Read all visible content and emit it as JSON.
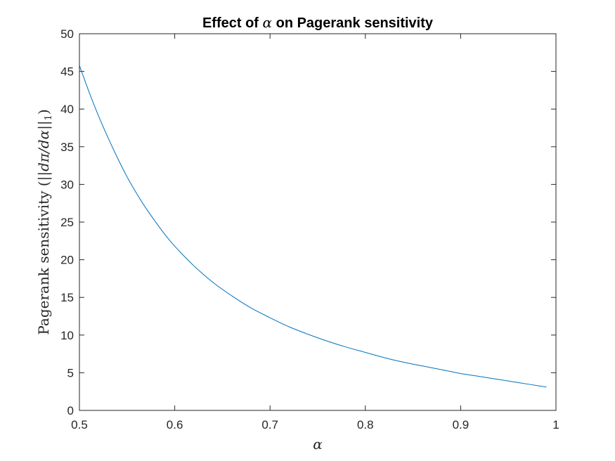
{
  "chart_data": {
    "type": "line",
    "title_prefix": "Effect of ",
    "title_symbol": "α",
    "title_suffix": " on Pagerank sensitivity",
    "xlabel": "α",
    "ylabel_text": "Pagerank sensitivity (",
    "ylabel_math": "||dπ/dα||",
    "ylabel_sub": "1",
    "ylabel_close": ")",
    "xlim": [
      0.5,
      1
    ],
    "ylim": [
      0,
      50
    ],
    "xticks": [
      "0.5",
      "0.6",
      "0.7",
      "0.8",
      "0.9",
      "1"
    ],
    "yticks": [
      "0",
      "5",
      "10",
      "15",
      "20",
      "25",
      "30",
      "35",
      "40",
      "45",
      "50"
    ],
    "grid": false,
    "line_color": "#0072BD",
    "series": [
      {
        "x": [
          0.5,
          0.51,
          0.52,
          0.53,
          0.54,
          0.55,
          0.56,
          0.57,
          0.58,
          0.59,
          0.6,
          0.62,
          0.64,
          0.66,
          0.68,
          0.7,
          0.72,
          0.74,
          0.76,
          0.78,
          0.8,
          0.82,
          0.84,
          0.86,
          0.88,
          0.9,
          0.92,
          0.94,
          0.96,
          0.99
        ],
        "y": [
          45.8,
          42.3,
          39.1,
          36.2,
          33.5,
          31.0,
          28.8,
          26.8,
          25.0,
          23.3,
          21.8,
          19.2,
          17.0,
          15.2,
          13.6,
          12.3,
          11.1,
          10.1,
          9.2,
          8.4,
          7.7,
          7.0,
          6.4,
          5.9,
          5.4,
          4.9,
          4.5,
          4.1,
          3.7,
          3.1
        ]
      }
    ]
  }
}
